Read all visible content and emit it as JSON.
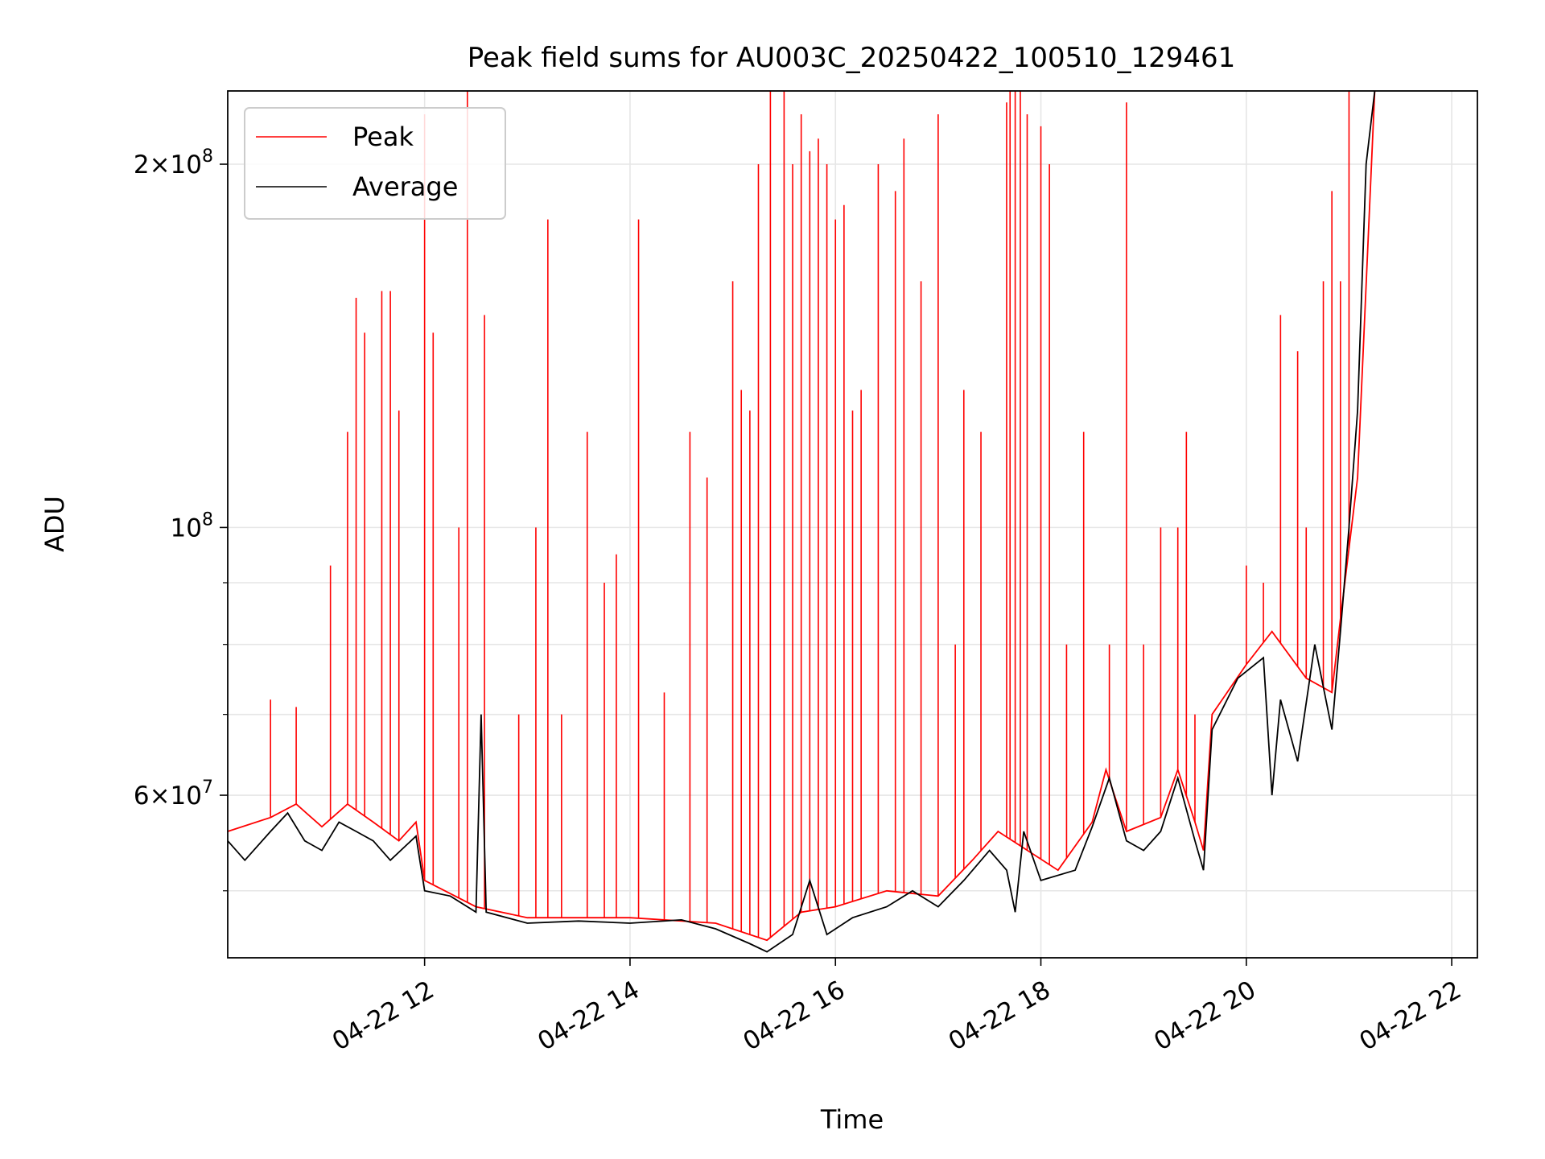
{
  "chart_data": {
    "type": "line",
    "title": "Peak field sums for AU003C_20250422_100510_129461",
    "xlabel": "Time",
    "ylabel": "ADU",
    "x_axis": {
      "kind": "datetime",
      "range": [
        "2025-04-22T10:05",
        "2025-04-22T22:15"
      ],
      "ticks": [
        "2025-04-22T12:00",
        "2025-04-22T14:00",
        "2025-04-22T16:00",
        "2025-04-22T18:00",
        "2025-04-22T20:00",
        "2025-04-22T22:00"
      ],
      "tick_labels": [
        "04-22 12",
        "04-22 14",
        "04-22 16",
        "04-22 18",
        "04-22 20",
        "04-22 22"
      ],
      "tick_rotation_deg": 30
    },
    "y_axis": {
      "scale": "log",
      "range": [
        44000000,
        230000000
      ],
      "major_ticks": [
        {
          "value": 60000000,
          "mantissa": "6",
          "exponent": "7"
        },
        {
          "value": 100000000,
          "mantissa": "",
          "exponent": "8"
        },
        {
          "value": 200000000,
          "mantissa": "2",
          "exponent": "8"
        }
      ],
      "minor_ticks": [
        50000000,
        70000000,
        80000000,
        90000000
      ]
    },
    "grid": true,
    "legend": {
      "position": "top-left"
    },
    "series": [
      {
        "name": "Peak",
        "color": "#ff0000",
        "baseline": [
          [
            "2025-04-22T10:05",
            56000000
          ],
          [
            "2025-04-22T10:30",
            57500000
          ],
          [
            "2025-04-22T10:45",
            59000000
          ],
          [
            "2025-04-22T11:00",
            56500000
          ],
          [
            "2025-04-22T11:15",
            59000000
          ],
          [
            "2025-04-22T11:30",
            57000000
          ],
          [
            "2025-04-22T11:45",
            55000000
          ],
          [
            "2025-04-22T11:55",
            57000000
          ],
          [
            "2025-04-22T12:00",
            51000000
          ],
          [
            "2025-04-22T12:30",
            48500000
          ],
          [
            "2025-04-22T13:00",
            47500000
          ],
          [
            "2025-04-22T14:00",
            47500000
          ],
          [
            "2025-04-22T14:50",
            47000000
          ],
          [
            "2025-04-22T15:20",
            45500000
          ],
          [
            "2025-04-22T15:40",
            48000000
          ],
          [
            "2025-04-22T16:00",
            48500000
          ],
          [
            "2025-04-22T16:30",
            50000000
          ],
          [
            "2025-04-22T17:00",
            49500000
          ],
          [
            "2025-04-22T17:20",
            53000000
          ],
          [
            "2025-04-22T17:35",
            56000000
          ],
          [
            "2025-04-22T18:10",
            52000000
          ],
          [
            "2025-04-22T18:30",
            57000000
          ],
          [
            "2025-04-22T18:38",
            63000000
          ],
          [
            "2025-04-22T18:50",
            56000000
          ],
          [
            "2025-04-22T19:10",
            57500000
          ],
          [
            "2025-04-22T19:20",
            63000000
          ],
          [
            "2025-04-22T19:30",
            57000000
          ],
          [
            "2025-04-22T19:35",
            54000000
          ],
          [
            "2025-04-22T19:40",
            70000000
          ],
          [
            "2025-04-22T20:00",
            77000000
          ],
          [
            "2025-04-22T20:15",
            82000000
          ],
          [
            "2025-04-22T20:35",
            75000000
          ],
          [
            "2025-04-22T20:50",
            73000000
          ],
          [
            "2025-04-22T20:55",
            84000000
          ],
          [
            "2025-04-22T21:05",
            110000000
          ],
          [
            "2025-04-22T21:15",
            230000000
          ]
        ],
        "spikes": [
          [
            "2025-04-22T10:30",
            72000000
          ],
          [
            "2025-04-22T10:45",
            71000000
          ],
          [
            "2025-04-22T11:05",
            93000000
          ],
          [
            "2025-04-22T11:15",
            120000000
          ],
          [
            "2025-04-22T11:20",
            155000000
          ],
          [
            "2025-04-22T11:25",
            145000000
          ],
          [
            "2025-04-22T11:35",
            157000000
          ],
          [
            "2025-04-22T11:40",
            157000000
          ],
          [
            "2025-04-22T11:45",
            125000000
          ],
          [
            "2025-04-22T12:00",
            220000000
          ],
          [
            "2025-04-22T12:05",
            145000000
          ],
          [
            "2025-04-22T12:20",
            100000000
          ],
          [
            "2025-04-22T12:25",
            230000000
          ],
          [
            "2025-04-22T12:35",
            150000000
          ],
          [
            "2025-04-22T12:55",
            70000000
          ],
          [
            "2025-04-22T13:05",
            100000000
          ],
          [
            "2025-04-22T13:12",
            180000000
          ],
          [
            "2025-04-22T13:20",
            70000000
          ],
          [
            "2025-04-22T13:35",
            120000000
          ],
          [
            "2025-04-22T13:45",
            90000000
          ],
          [
            "2025-04-22T13:52",
            95000000
          ],
          [
            "2025-04-22T14:05",
            180000000
          ],
          [
            "2025-04-22T14:20",
            73000000
          ],
          [
            "2025-04-22T14:35",
            120000000
          ],
          [
            "2025-04-22T14:45",
            110000000
          ],
          [
            "2025-04-22T15:00",
            160000000
          ],
          [
            "2025-04-22T15:05",
            130000000
          ],
          [
            "2025-04-22T15:10",
            125000000
          ],
          [
            "2025-04-22T15:15",
            200000000
          ],
          [
            "2025-04-22T15:22",
            230000000
          ],
          [
            "2025-04-22T15:30",
            230000000
          ],
          [
            "2025-04-22T15:35",
            200000000
          ],
          [
            "2025-04-22T15:40",
            220000000
          ],
          [
            "2025-04-22T15:45",
            205000000
          ],
          [
            "2025-04-22T15:50",
            210000000
          ],
          [
            "2025-04-22T15:55",
            200000000
          ],
          [
            "2025-04-22T16:00",
            180000000
          ],
          [
            "2025-04-22T16:05",
            185000000
          ],
          [
            "2025-04-22T16:10",
            125000000
          ],
          [
            "2025-04-22T16:15",
            130000000
          ],
          [
            "2025-04-22T16:25",
            200000000
          ],
          [
            "2025-04-22T16:35",
            190000000
          ],
          [
            "2025-04-22T16:40",
            210000000
          ],
          [
            "2025-04-22T16:50",
            160000000
          ],
          [
            "2025-04-22T17:00",
            220000000
          ],
          [
            "2025-04-22T17:10",
            80000000
          ],
          [
            "2025-04-22T17:15",
            130000000
          ],
          [
            "2025-04-22T17:25",
            120000000
          ],
          [
            "2025-04-22T17:40",
            225000000
          ],
          [
            "2025-04-22T17:42",
            230000000
          ],
          [
            "2025-04-22T17:45",
            230000000
          ],
          [
            "2025-04-22T17:48",
            230000000
          ],
          [
            "2025-04-22T17:52",
            220000000
          ],
          [
            "2025-04-22T18:00",
            215000000
          ],
          [
            "2025-04-22T18:05",
            200000000
          ],
          [
            "2025-04-22T18:15",
            80000000
          ],
          [
            "2025-04-22T18:25",
            120000000
          ],
          [
            "2025-04-22T18:40",
            80000000
          ],
          [
            "2025-04-22T18:50",
            225000000
          ],
          [
            "2025-04-22T19:00",
            80000000
          ],
          [
            "2025-04-22T19:10",
            100000000
          ],
          [
            "2025-04-22T19:20",
            100000000
          ],
          [
            "2025-04-22T19:25",
            120000000
          ],
          [
            "2025-04-22T19:30",
            70000000
          ],
          [
            "2025-04-22T20:00",
            93000000
          ],
          [
            "2025-04-22T20:10",
            90000000
          ],
          [
            "2025-04-22T20:20",
            150000000
          ],
          [
            "2025-04-22T20:30",
            140000000
          ],
          [
            "2025-04-22T20:35",
            100000000
          ],
          [
            "2025-04-22T20:45",
            160000000
          ],
          [
            "2025-04-22T20:50",
            190000000
          ],
          [
            "2025-04-22T20:55",
            160000000
          ],
          [
            "2025-04-22T21:00",
            230000000
          ]
        ]
      },
      {
        "name": "Average",
        "color": "#000000",
        "values": [
          [
            "2025-04-22T10:05",
            55000000
          ],
          [
            "2025-04-22T10:15",
            53000000
          ],
          [
            "2025-04-22T10:30",
            56000000
          ],
          [
            "2025-04-22T10:40",
            58000000
          ],
          [
            "2025-04-22T10:50",
            55000000
          ],
          [
            "2025-04-22T11:00",
            54000000
          ],
          [
            "2025-04-22T11:10",
            57000000
          ],
          [
            "2025-04-22T11:20",
            56000000
          ],
          [
            "2025-04-22T11:30",
            55000000
          ],
          [
            "2025-04-22T11:40",
            53000000
          ],
          [
            "2025-04-22T11:55",
            55500000
          ],
          [
            "2025-04-22T12:00",
            50000000
          ],
          [
            "2025-04-22T12:15",
            49500000
          ],
          [
            "2025-04-22T12:30",
            48000000
          ],
          [
            "2025-04-22T12:33",
            70000000
          ],
          [
            "2025-04-22T12:36",
            48000000
          ],
          [
            "2025-04-22T13:00",
            47000000
          ],
          [
            "2025-04-22T13:30",
            47200000
          ],
          [
            "2025-04-22T14:00",
            47000000
          ],
          [
            "2025-04-22T14:30",
            47300000
          ],
          [
            "2025-04-22T14:50",
            46500000
          ],
          [
            "2025-04-22T15:10",
            45200000
          ],
          [
            "2025-04-22T15:20",
            44500000
          ],
          [
            "2025-04-22T15:35",
            46000000
          ],
          [
            "2025-04-22T15:45",
            51000000
          ],
          [
            "2025-04-22T15:55",
            46000000
          ],
          [
            "2025-04-22T16:10",
            47500000
          ],
          [
            "2025-04-22T16:30",
            48500000
          ],
          [
            "2025-04-22T16:45",
            50000000
          ],
          [
            "2025-04-22T17:00",
            48500000
          ],
          [
            "2025-04-22T17:15",
            51000000
          ],
          [
            "2025-04-22T17:30",
            54000000
          ],
          [
            "2025-04-22T17:40",
            52000000
          ],
          [
            "2025-04-22T17:45",
            48000000
          ],
          [
            "2025-04-22T17:50",
            56000000
          ],
          [
            "2025-04-22T18:00",
            51000000
          ],
          [
            "2025-04-22T18:20",
            52000000
          ],
          [
            "2025-04-22T18:30",
            56500000
          ],
          [
            "2025-04-22T18:40",
            62000000
          ],
          [
            "2025-04-22T18:50",
            55000000
          ],
          [
            "2025-04-22T19:00",
            54000000
          ],
          [
            "2025-04-22T19:10",
            56000000
          ],
          [
            "2025-04-22T19:20",
            62000000
          ],
          [
            "2025-04-22T19:30",
            55000000
          ],
          [
            "2025-04-22T19:35",
            52000000
          ],
          [
            "2025-04-22T19:40",
            68000000
          ],
          [
            "2025-04-22T19:55",
            75000000
          ],
          [
            "2025-04-22T20:10",
            78000000
          ],
          [
            "2025-04-22T20:15",
            60000000
          ],
          [
            "2025-04-22T20:20",
            72000000
          ],
          [
            "2025-04-22T20:30",
            64000000
          ],
          [
            "2025-04-22T20:40",
            80000000
          ],
          [
            "2025-04-22T20:50",
            68000000
          ],
          [
            "2025-04-22T20:55",
            82000000
          ],
          [
            "2025-04-22T21:00",
            100000000
          ],
          [
            "2025-04-22T21:05",
            125000000
          ],
          [
            "2025-04-22T21:10",
            200000000
          ],
          [
            "2025-04-22T21:15",
            230000000
          ]
        ]
      }
    ]
  }
}
